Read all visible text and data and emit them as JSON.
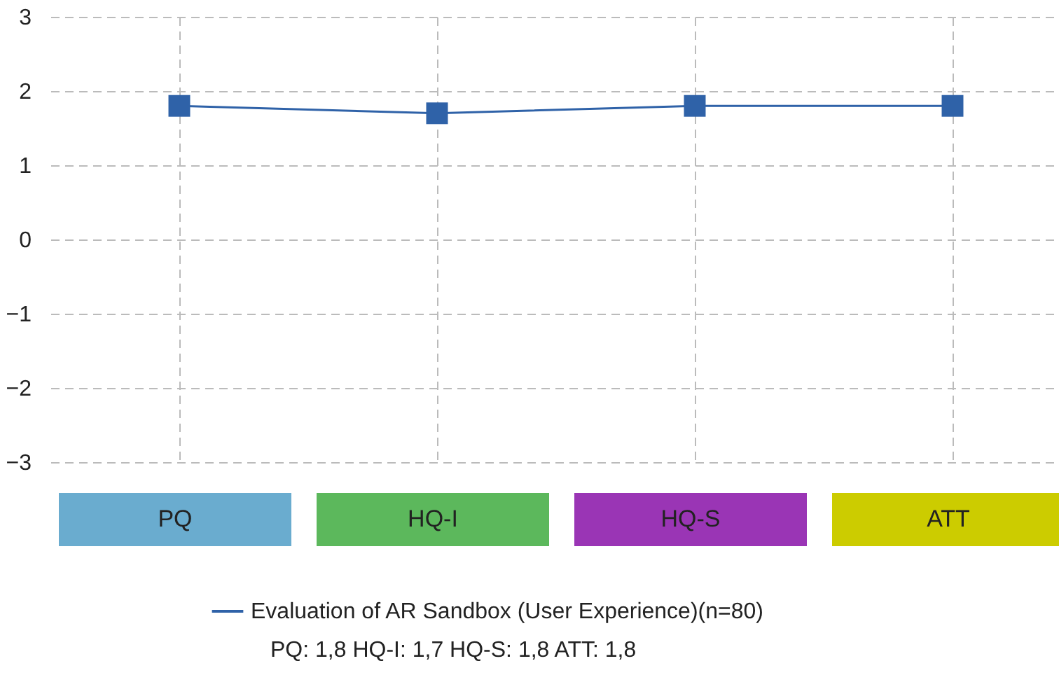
{
  "chart_data": {
    "type": "line",
    "categories": [
      "PQ",
      "HQ-I",
      "HQ-S",
      "ATT"
    ],
    "series": [
      {
        "name": "Evaluation of AR Sandbox (User Experience)(n=80)",
        "color": "#2f62a8",
        "values": [
          1.8,
          1.7,
          1.8,
          1.8
        ]
      }
    ],
    "ylim": [
      -3,
      3
    ],
    "yticks": [
      -3,
      -2,
      -1,
      0,
      1,
      2,
      3
    ],
    "grid": true,
    "legend": "bottom",
    "marker": "square",
    "line_style": "solid",
    "annotations": [
      "PQ: 1,8 HQ-I: 1,7 HQ-S: 1,8 ATT: 1,8"
    ]
  }
}
